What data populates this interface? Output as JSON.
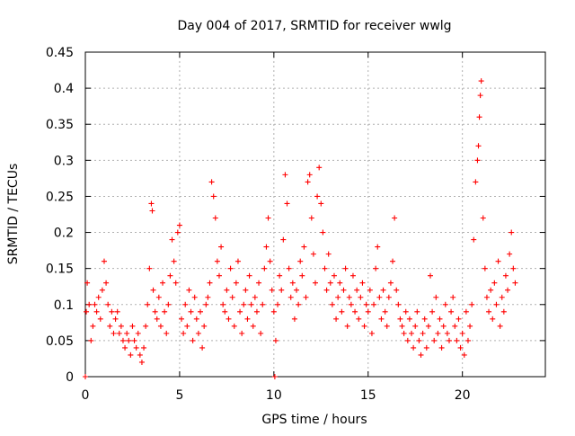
{
  "chart_data": {
    "type": "scatter",
    "title": "Day 004 of 2017, SRMTID for receiver wwlg",
    "xlabel": "GPS time / hours",
    "ylabel": "SRMTID / TECUs",
    "xlim": [
      0,
      24.4
    ],
    "ylim": [
      0,
      0.45
    ],
    "xticks": [
      0,
      5,
      10,
      15,
      20
    ],
    "yticks": [
      0,
      0.05,
      0.1,
      0.15,
      0.2,
      0.25,
      0.3,
      0.35,
      0.4,
      0.45
    ],
    "xtick_labels": [
      "0",
      "5",
      "10",
      "15",
      "20"
    ],
    "ytick_labels": [
      "0",
      "0.05",
      "0.1",
      "0.15",
      "0.2",
      "0.25",
      "0.3",
      "0.35",
      "0.4",
      "0.45"
    ],
    "grid": true,
    "marker": "+",
    "color": "#ff0000",
    "series": [
      {
        "name": "SRMTID",
        "x": [
          0.0,
          0.05,
          0.1,
          0.2,
          0.3,
          0.4,
          0.5,
          0.6,
          0.7,
          0.8,
          0.9,
          1.0,
          1.1,
          1.2,
          1.3,
          1.4,
          1.5,
          1.6,
          1.7,
          1.8,
          1.9,
          2.0,
          2.1,
          2.2,
          2.3,
          2.4,
          2.5,
          2.6,
          2.7,
          2.8,
          2.9,
          3.0,
          3.1,
          3.2,
          3.3,
          3.4,
          3.5,
          3.55,
          3.6,
          3.7,
          3.8,
          3.9,
          4.0,
          4.1,
          4.2,
          4.3,
          4.4,
          4.5,
          4.6,
          4.7,
          4.8,
          4.9,
          5.0,
          5.1,
          5.2,
          5.3,
          5.4,
          5.5,
          5.6,
          5.7,
          5.8,
          5.9,
          6.0,
          6.1,
          6.2,
          6.3,
          6.4,
          6.5,
          6.6,
          6.7,
          6.8,
          6.9,
          7.0,
          7.1,
          7.2,
          7.3,
          7.4,
          7.5,
          7.6,
          7.7,
          7.8,
          7.9,
          8.0,
          8.1,
          8.2,
          8.3,
          8.4,
          8.5,
          8.6,
          8.7,
          8.8,
          8.9,
          9.0,
          9.1,
          9.2,
          9.3,
          9.4,
          9.5,
          9.6,
          9.7,
          9.8,
          9.9,
          10.0,
          10.05,
          10.1,
          10.2,
          10.3,
          10.4,
          10.5,
          10.6,
          10.7,
          10.8,
          10.9,
          11.0,
          11.1,
          11.2,
          11.3,
          11.4,
          11.5,
          11.6,
          11.7,
          11.8,
          11.9,
          12.0,
          12.1,
          12.2,
          12.3,
          12.4,
          12.5,
          12.6,
          12.7,
          12.8,
          12.9,
          13.0,
          13.1,
          13.2,
          13.3,
          13.4,
          13.5,
          13.6,
          13.7,
          13.8,
          13.9,
          14.0,
          14.1,
          14.2,
          14.3,
          14.4,
          14.5,
          14.6,
          14.7,
          14.8,
          14.9,
          15.0,
          15.1,
          15.2,
          15.3,
          15.4,
          15.5,
          15.6,
          15.7,
          15.8,
          15.9,
          16.0,
          16.1,
          16.2,
          16.3,
          16.4,
          16.5,
          16.6,
          16.7,
          16.8,
          16.9,
          17.0,
          17.1,
          17.2,
          17.3,
          17.4,
          17.5,
          17.6,
          17.7,
          17.8,
          17.9,
          18.0,
          18.1,
          18.2,
          18.3,
          18.4,
          18.5,
          18.6,
          18.7,
          18.8,
          18.9,
          19.0,
          19.1,
          19.2,
          19.3,
          19.4,
          19.5,
          19.6,
          19.7,
          19.8,
          19.9,
          20.0,
          20.1,
          20.2,
          20.3,
          20.4,
          20.5,
          20.6,
          20.7,
          20.8,
          20.85,
          20.9,
          20.95,
          21.0,
          21.1,
          21.2,
          21.3,
          21.4,
          21.5,
          21.6,
          21.7,
          21.8,
          21.9,
          22.0,
          22.1,
          22.2,
          22.3,
          22.4,
          22.5,
          22.6,
          22.7,
          22.8
        ],
        "y": [
          0.0,
          0.09,
          0.13,
          0.1,
          0.05,
          0.07,
          0.1,
          0.09,
          0.11,
          0.08,
          0.12,
          0.16,
          0.13,
          0.1,
          0.07,
          0.09,
          0.06,
          0.08,
          0.09,
          0.06,
          0.07,
          0.05,
          0.04,
          0.06,
          0.05,
          0.03,
          0.07,
          0.05,
          0.04,
          0.06,
          0.03,
          0.02,
          0.04,
          0.07,
          0.1,
          0.15,
          0.24,
          0.23,
          0.12,
          0.09,
          0.08,
          0.11,
          0.07,
          0.13,
          0.09,
          0.06,
          0.1,
          0.14,
          0.19,
          0.16,
          0.13,
          0.2,
          0.21,
          0.08,
          0.06,
          0.1,
          0.07,
          0.12,
          0.09,
          0.05,
          0.11,
          0.08,
          0.06,
          0.09,
          0.04,
          0.07,
          0.1,
          0.11,
          0.13,
          0.27,
          0.25,
          0.22,
          0.16,
          0.14,
          0.18,
          0.1,
          0.09,
          0.12,
          0.08,
          0.15,
          0.11,
          0.07,
          0.13,
          0.16,
          0.09,
          0.06,
          0.1,
          0.12,
          0.08,
          0.14,
          0.1,
          0.07,
          0.11,
          0.09,
          0.13,
          0.06,
          0.1,
          0.15,
          0.18,
          0.22,
          0.16,
          0.12,
          0.09,
          0.0,
          0.05,
          0.1,
          0.14,
          0.12,
          0.19,
          0.28,
          0.24,
          0.15,
          0.11,
          0.13,
          0.08,
          0.12,
          0.1,
          0.16,
          0.14,
          0.18,
          0.11,
          0.27,
          0.28,
          0.22,
          0.17,
          0.13,
          0.25,
          0.29,
          0.24,
          0.2,
          0.15,
          0.12,
          0.17,
          0.13,
          0.1,
          0.14,
          0.08,
          0.11,
          0.13,
          0.09,
          0.12,
          0.15,
          0.07,
          0.11,
          0.1,
          0.14,
          0.09,
          0.12,
          0.08,
          0.11,
          0.13,
          0.07,
          0.1,
          0.09,
          0.12,
          0.06,
          0.1,
          0.15,
          0.18,
          0.11,
          0.08,
          0.12,
          0.09,
          0.07,
          0.11,
          0.13,
          0.16,
          0.22,
          0.12,
          0.1,
          0.08,
          0.07,
          0.06,
          0.09,
          0.05,
          0.08,
          0.06,
          0.04,
          0.07,
          0.09,
          0.05,
          0.03,
          0.06,
          0.08,
          0.04,
          0.07,
          0.14,
          0.09,
          0.05,
          0.11,
          0.06,
          0.08,
          0.04,
          0.07,
          0.1,
          0.06,
          0.05,
          0.09,
          0.11,
          0.07,
          0.05,
          0.08,
          0.04,
          0.06,
          0.03,
          0.09,
          0.05,
          0.07,
          0.1,
          0.19,
          0.27,
          0.3,
          0.32,
          0.36,
          0.39,
          0.41,
          0.22,
          0.15,
          0.11,
          0.09,
          0.12,
          0.08,
          0.13,
          0.1,
          0.16,
          0.07,
          0.11,
          0.09,
          0.14,
          0.12,
          0.17,
          0.2,
          0.15,
          0.13
        ]
      }
    ]
  }
}
